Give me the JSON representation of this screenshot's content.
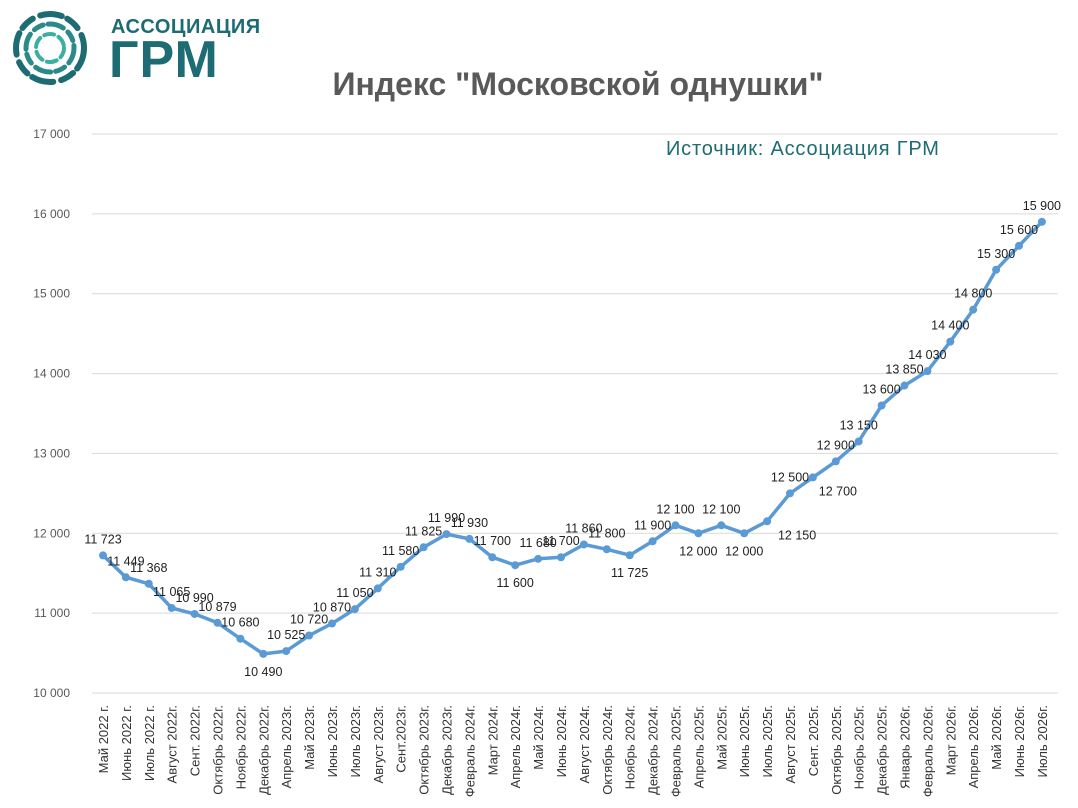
{
  "logo": {
    "line1": "АССОЦИАЦИЯ",
    "line2": "ГРМ"
  },
  "source": "Источник: Ассоциация ГРМ",
  "colors": {
    "line": "#5b9bd5",
    "grid": "#d9d9d9",
    "logo": "#1d6b73"
  },
  "chart_data": {
    "type": "line",
    "title": "Индекс \"Московской однушки\"",
    "ylim": [
      10000,
      17000
    ],
    "yticks": [
      "10 000",
      "11 000",
      "12 000",
      "13 000",
      "14 000",
      "15 000",
      "16 000",
      "17 000"
    ],
    "grid": true,
    "categories": [
      "Май 2022 г.",
      "Июнь 2022 г.",
      "Июль 2022 г.",
      "Август 2022г.",
      "Сент. 2022г.",
      "Октябрь 2022г.",
      "Ноябрь 2022г.",
      "Декабрь 2022г.",
      "Апрель 2023г.",
      "Май 2023г.",
      "Июнь 2023г.",
      "Июль 2023г.",
      "Август 2023г.",
      "Сент.2023г.",
      "Октябрь 2023г.",
      "Декабрь 2023г.",
      "Февраль 2024г.",
      "Март 2024г.",
      "Апрель 2024г.",
      "Май 2024г.",
      "Июнь 2024г.",
      "Август 2024г.",
      "Октябрь 2024г.",
      "Ноябрь 2024г.",
      "Декабрь 2024г.",
      "Февраль 2025г.",
      "Апрель 2025г.",
      "Май 2025г.",
      "Июнь 2025г.",
      "Июль 2025г.",
      "Август 2025г.",
      "Сент. 2025г.",
      "Октябрь 2025г.",
      "Ноябрь 2025г.",
      "Декабрь 2025г.",
      "Январь 2026г.",
      "Февраль 2026г.",
      "Март 2026г.",
      "Апрель 2026г.",
      "Май 2026г.",
      "Июнь 2026г.",
      "Июль 2026г."
    ],
    "values": [
      11723,
      11449,
      11368,
      11065,
      10990,
      10879,
      10680,
      10490,
      10525,
      10720,
      10870,
      11050,
      11310,
      11580,
      11825,
      11990,
      11930,
      11700,
      11600,
      11680,
      11700,
      11860,
      11800,
      11725,
      11900,
      12100,
      12000,
      12100,
      12000,
      12150,
      12500,
      12700,
      12900,
      13150,
      13600,
      13850,
      14030,
      14400,
      14800,
      15300,
      15600,
      15900
    ],
    "labels": [
      "11 723",
      "11 449",
      "11 368",
      "11 065",
      "10 990",
      "10 879",
      "10 680",
      "10 490",
      "10 525",
      "10 720",
      "10 870",
      "11 050",
      "11 310",
      "11 580",
      "11 825",
      "11 990",
      "11 930",
      "11 700",
      "11 600",
      "11 680",
      "11 700",
      "11 860",
      "11 800",
      "11 725",
      "11 900",
      "12 100",
      "12 000",
      "12 100",
      "12 000",
      "12 150",
      "12 500",
      "12 700",
      "12 900",
      "13 150",
      "13 600",
      "13 850",
      "14 030",
      "14 400",
      "14 800",
      "15 300",
      "15 600",
      "15 900"
    ]
  }
}
